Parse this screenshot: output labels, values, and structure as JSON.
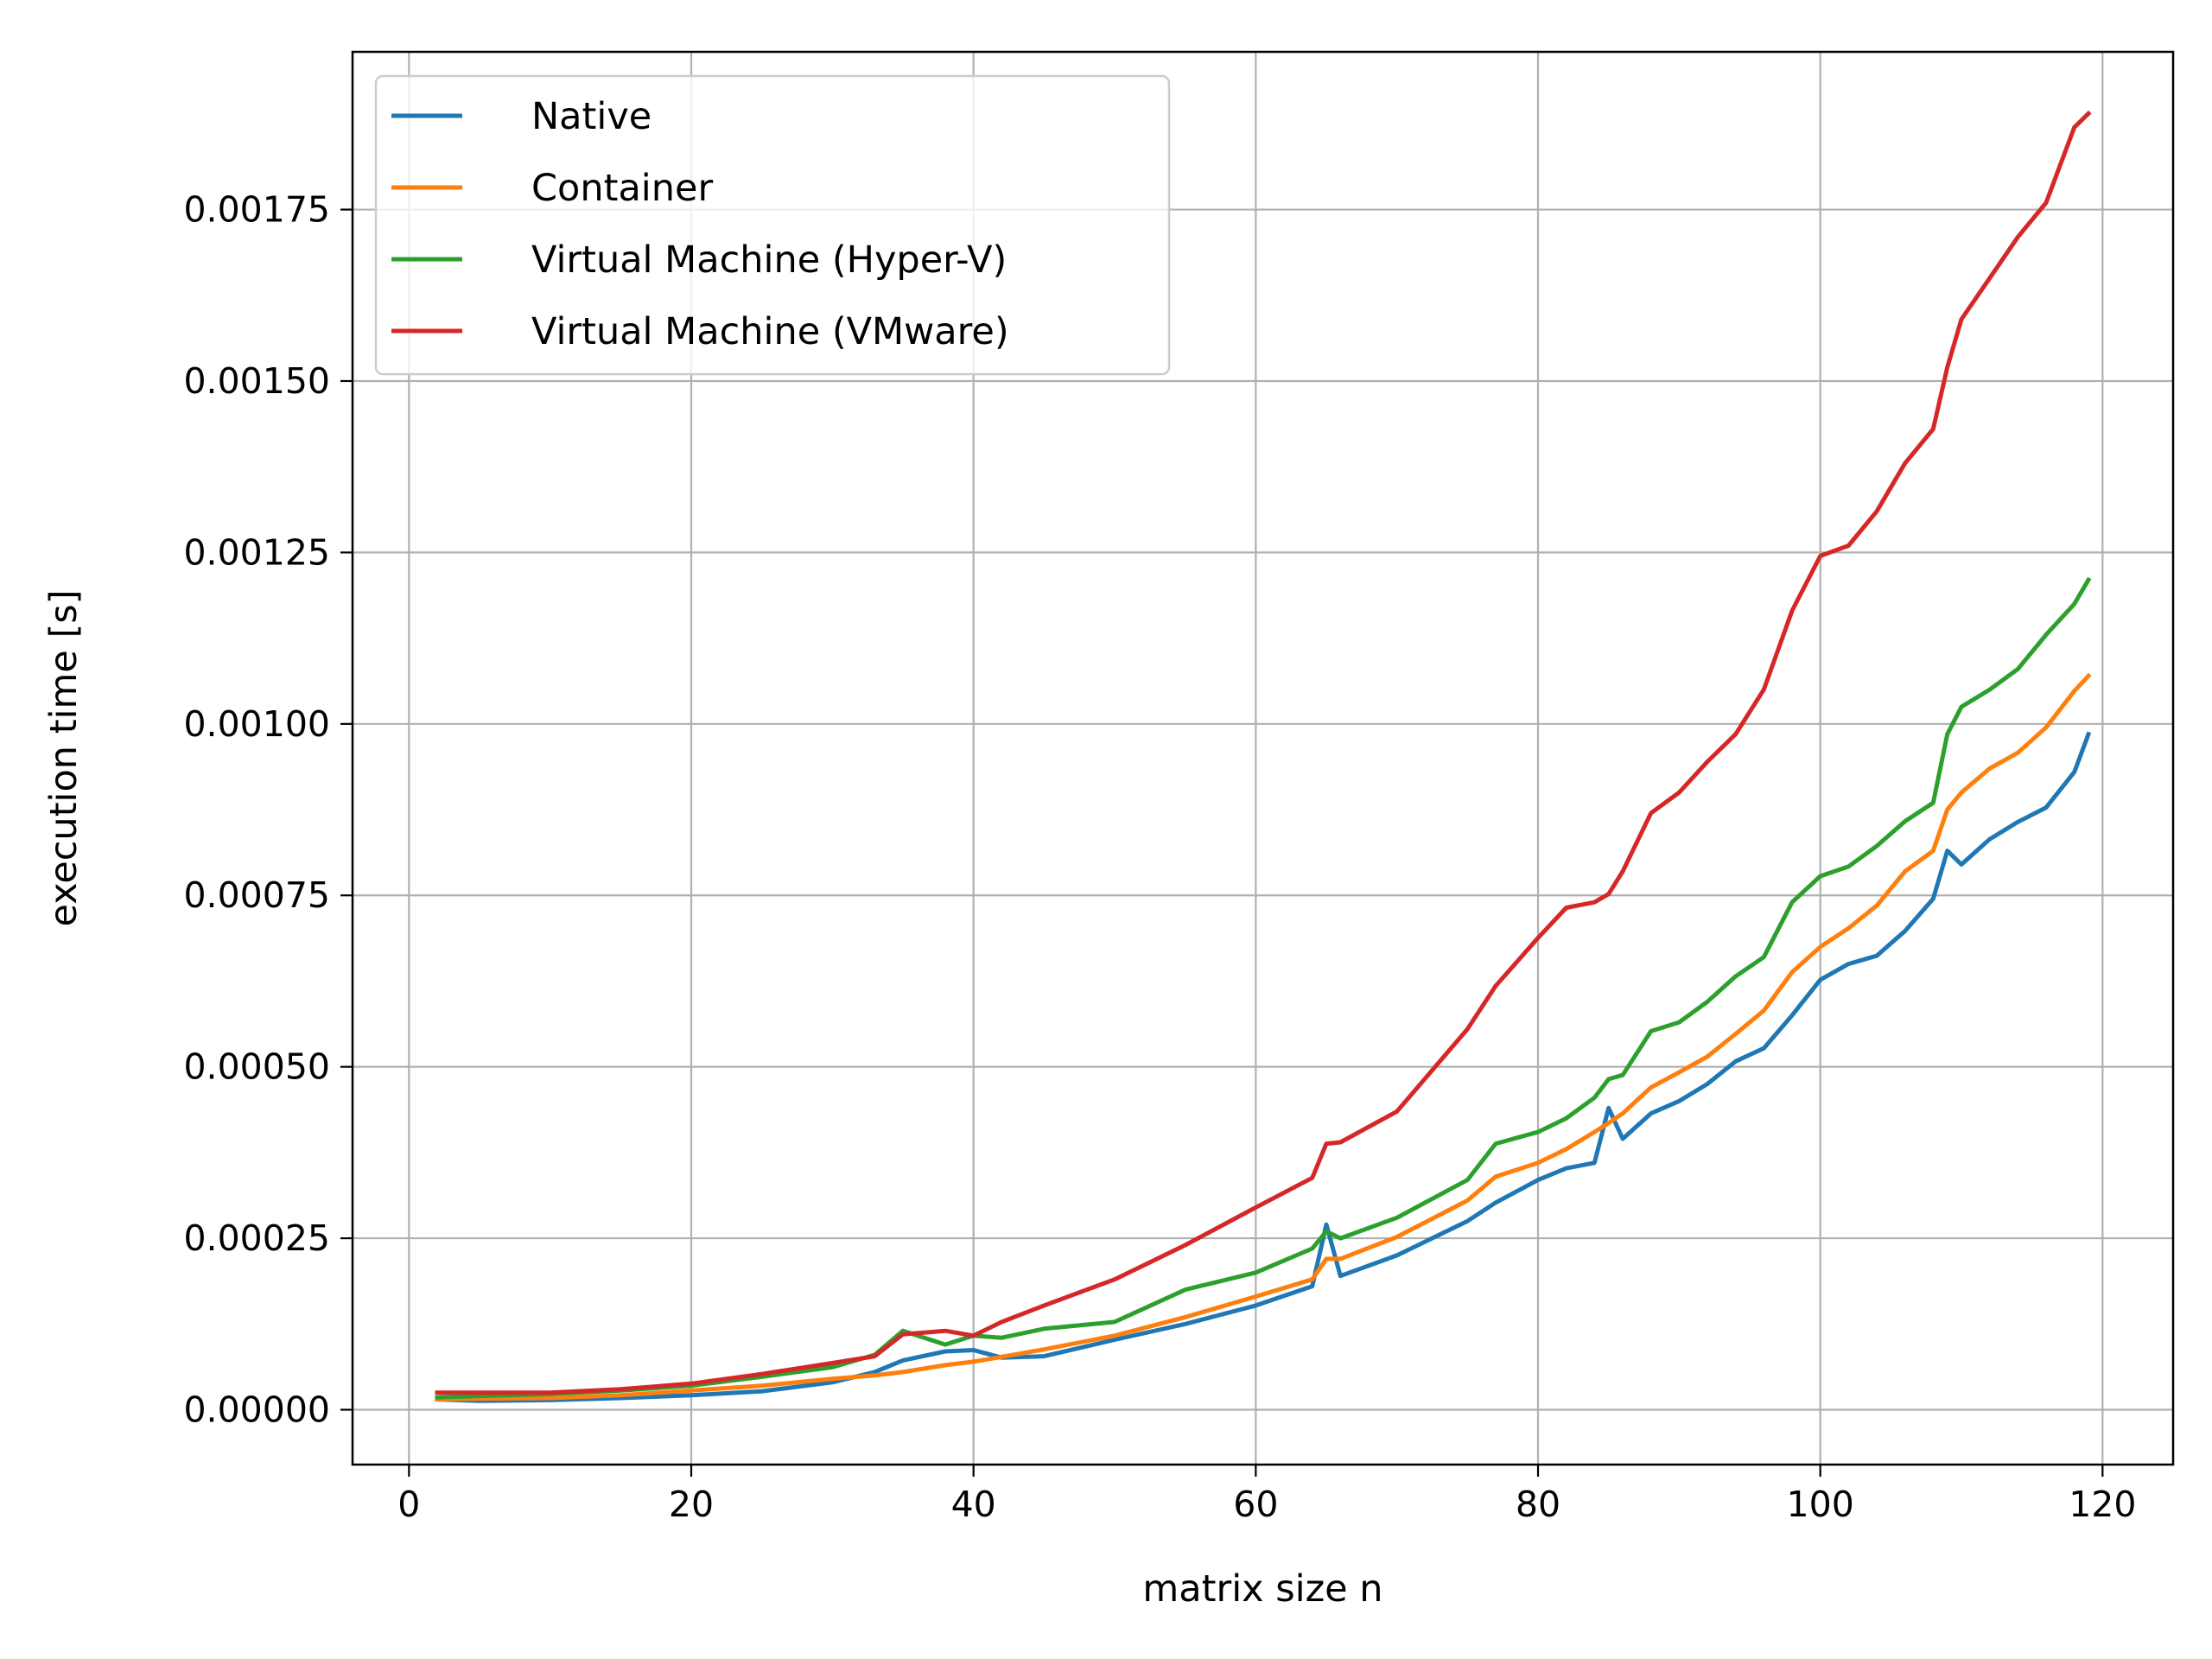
{
  "chart_data": {
    "type": "line",
    "title": "",
    "xlabel": "matrix size n",
    "ylabel": "execution time [s]",
    "xlim": [
      -4,
      125
    ],
    "ylim": [
      -8e-05,
      0.00198
    ],
    "xticks": [
      0,
      20,
      40,
      60,
      80,
      100,
      120
    ],
    "xtick_labels": [
      "0",
      "20",
      "40",
      "60",
      "80",
      "100",
      "120"
    ],
    "yticks": [
      0,
      0.00025,
      0.0005,
      0.00075,
      0.001,
      0.00125,
      0.0015,
      0.00175
    ],
    "ytick_labels": [
      "0.00000",
      "0.00025",
      "0.00050",
      "0.00075",
      "0.00100",
      "0.00125",
      "0.00150",
      "0.00175"
    ],
    "grid": true,
    "legend_position": "top-left",
    "x": [
      2,
      5,
      10,
      15,
      20,
      25,
      30,
      33,
      35,
      38,
      40,
      42,
      45,
      50,
      55,
      60,
      64,
      65,
      66,
      70,
      75,
      77,
      80,
      82,
      84,
      85,
      86,
      88,
      90,
      92,
      94,
      96,
      98,
      100,
      102,
      104,
      106,
      108,
      109,
      110,
      112,
      114,
      116,
      118,
      119
    ],
    "series": [
      {
        "name": "Native",
        "color": "#1f77b4",
        "values": [
          1.5e-05,
          1.3e-05,
          1.4e-05,
          1.7e-05,
          2.1e-05,
          2.7e-05,
          4e-05,
          5.5e-05,
          7.2e-05,
          8.5e-05,
          8.7e-05,
          7.6e-05,
          7.8e-05,
          0.000102,
          0.000125,
          0.000152,
          0.00018,
          0.00027,
          0.000195,
          0.000225,
          0.000275,
          0.000302,
          0.000335,
          0.000352,
          0.00036,
          0.00044,
          0.000395,
          0.000432,
          0.00045,
          0.000475,
          0.000508,
          0.000527,
          0.000575,
          0.000627,
          0.00065,
          0.000662,
          0.000698,
          0.000745,
          0.000815,
          0.000795,
          0.000832,
          0.000857,
          0.000878,
          0.00093,
          0.000985
        ]
      },
      {
        "name": "Container",
        "color": "#ff7f0e",
        "values": [
          1.5e-05,
          1.6e-05,
          1.7e-05,
          2.1e-05,
          2.8e-05,
          3.5e-05,
          4.5e-05,
          5e-05,
          5.5e-05,
          6.5e-05,
          7e-05,
          7.7e-05,
          8.8e-05,
          0.000108,
          0.000135,
          0.000165,
          0.00019,
          0.00022,
          0.00022,
          0.000252,
          0.000305,
          0.00034,
          0.00036,
          0.00038,
          0.000405,
          0.000418,
          0.000432,
          0.00047,
          0.000492,
          0.000515,
          0.000548,
          0.000582,
          0.000638,
          0.000675,
          0.000702,
          0.000735,
          0.000785,
          0.000815,
          0.000875,
          0.0009,
          0.000935,
          0.000958,
          0.000995,
          0.001048,
          0.00107
        ]
      },
      {
        "name": "Virtual Machine (Hyper-V)",
        "color": "#2ca02c",
        "values": [
          1.8e-05,
          2e-05,
          2.3e-05,
          2.8e-05,
          3.5e-05,
          4.8e-05,
          6.2e-05,
          8e-05,
          0.000115,
          9.5e-05,
          0.000108,
          0.000105,
          0.000118,
          0.000128,
          0.000175,
          0.0002,
          0.000235,
          0.00026,
          0.00025,
          0.00028,
          0.000335,
          0.000388,
          0.000405,
          0.000425,
          0.000455,
          0.000482,
          0.000488,
          0.000552,
          0.000565,
          0.000595,
          0.000632,
          0.00066,
          0.00074,
          0.000778,
          0.000792,
          0.000822,
          0.000858,
          0.000885,
          0.000985,
          0.001025,
          0.00105,
          0.00108,
          0.00113,
          0.001175,
          0.00121
        ]
      },
      {
        "name": "Virtual Machine (VMware)",
        "color": "#d62728",
        "values": [
          2.5e-05,
          2.5e-05,
          2.5e-05,
          3e-05,
          3.8e-05,
          5.2e-05,
          6.8e-05,
          7.8e-05,
          0.00011,
          0.000115,
          0.000108,
          0.000128,
          0.000152,
          0.00019,
          0.00024,
          0.000295,
          0.000338,
          0.000388,
          0.00039,
          0.000435,
          0.000555,
          0.000618,
          0.000688,
          0.000732,
          0.00074,
          0.000752,
          0.000785,
          0.00087,
          0.0009,
          0.000945,
          0.000985,
          0.00105,
          0.001165,
          0.001245,
          0.00126,
          0.00131,
          0.00138,
          0.00143,
          0.00152,
          0.00159,
          0.00165,
          0.00171,
          0.00176,
          0.00187,
          0.00189
        ]
      }
    ]
  }
}
